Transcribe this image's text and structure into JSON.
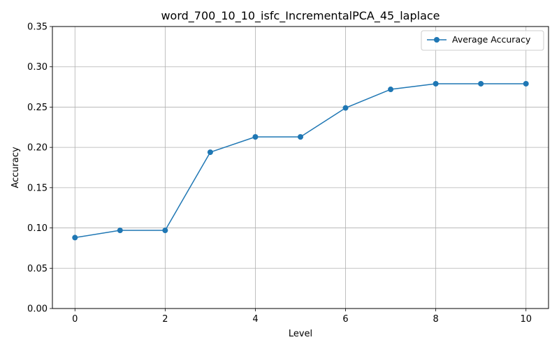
{
  "chart_data": {
    "type": "line",
    "title": "word_700_10_10_isfc_IncrementalPCA_45_laplace",
    "xlabel": "Level",
    "ylabel": "Accuracy",
    "xlim": [
      -0.5,
      10.5
    ],
    "ylim": [
      0,
      0.35
    ],
    "xticks": [
      0,
      2,
      4,
      6,
      8,
      10
    ],
    "yticks": [
      0.0,
      0.05,
      0.1,
      0.15,
      0.2,
      0.25,
      0.3,
      0.35
    ],
    "xtick_labels": [
      "0",
      "2",
      "4",
      "6",
      "8",
      "10"
    ],
    "ytick_labels": [
      "0.00",
      "0.05",
      "0.10",
      "0.15",
      "0.20",
      "0.25",
      "0.30",
      "0.35"
    ],
    "grid": true,
    "legend_position": "top-right",
    "series": [
      {
        "name": "Average Accuracy",
        "color": "#1f77b4",
        "marker": "circle",
        "x": [
          0,
          1,
          2,
          3,
          4,
          5,
          6,
          7,
          8,
          9,
          10
        ],
        "y": [
          0.088,
          0.097,
          0.097,
          0.194,
          0.213,
          0.213,
          0.249,
          0.272,
          0.279,
          0.279,
          0.279
        ]
      }
    ]
  }
}
